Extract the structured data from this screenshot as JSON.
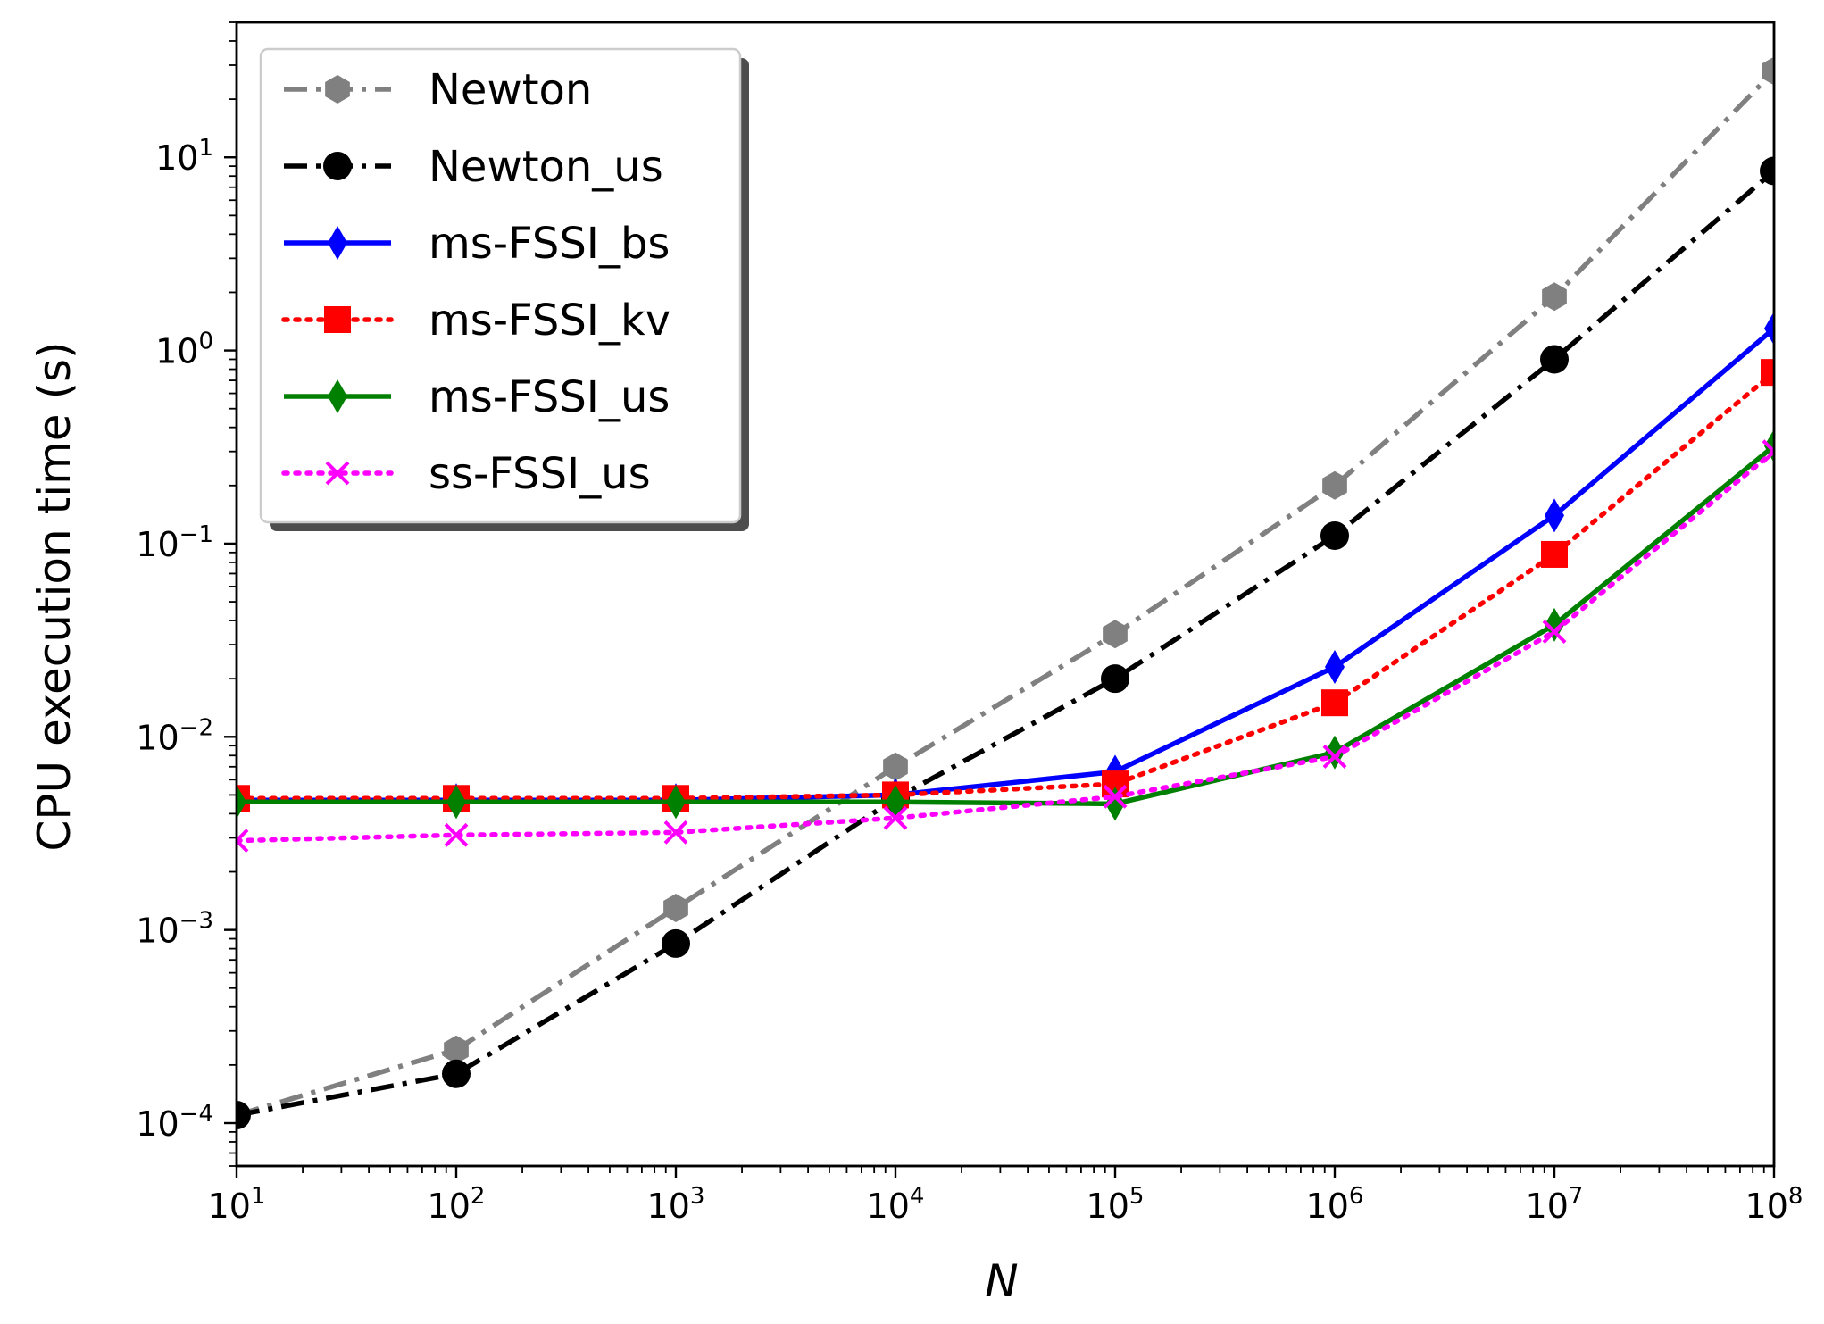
{
  "chart_data": {
    "type": "line",
    "title": "",
    "xlabel": "N",
    "ylabel": "CPU execution time (s)",
    "xscale": "log",
    "yscale": "log",
    "xlim": [
      10,
      100000000
    ],
    "ylim": [
      6e-05,
      50
    ],
    "x_ticks": [
      {
        "base": "10",
        "exp": "1"
      },
      {
        "base": "10",
        "exp": "2"
      },
      {
        "base": "10",
        "exp": "3"
      },
      {
        "base": "10",
        "exp": "4"
      },
      {
        "base": "10",
        "exp": "5"
      },
      {
        "base": "10",
        "exp": "6"
      },
      {
        "base": "10",
        "exp": "7"
      },
      {
        "base": "10",
        "exp": "8"
      }
    ],
    "y_ticks": [
      {
        "base": "10",
        "exp": "−4"
      },
      {
        "base": "10",
        "exp": "−3"
      },
      {
        "base": "10",
        "exp": "−2"
      },
      {
        "base": "10",
        "exp": "−1"
      },
      {
        "base": "10",
        "exp": "0"
      },
      {
        "base": "10",
        "exp": "1"
      }
    ],
    "legend_position": "top-left",
    "x": [
      10,
      100,
      1000,
      10000,
      100000,
      1000000,
      10000000,
      100000000
    ],
    "series": [
      {
        "name": "Newton",
        "color": "#808080",
        "linestyle": "dashdot",
        "marker": "hexagon",
        "values": [
          0.00011,
          0.00024,
          0.0013,
          0.007,
          0.034,
          0.2,
          1.9,
          28
        ]
      },
      {
        "name": "Newton_us",
        "color": "#000000",
        "linestyle": "dashdot",
        "marker": "circle",
        "values": [
          0.00011,
          0.00018,
          0.00085,
          0.0048,
          0.02,
          0.11,
          0.9,
          8.5
        ]
      },
      {
        "name": "ms-FSSI_bs",
        "color": "#0000ff",
        "linestyle": "solid",
        "marker": "thin_diamond",
        "values": [
          0.0047,
          0.0047,
          0.0047,
          0.005,
          0.0066,
          0.023,
          0.14,
          1.3
        ]
      },
      {
        "name": "ms-FSSI_kv",
        "color": "#ff0000",
        "linestyle": "dotted",
        "marker": "square",
        "values": [
          0.0048,
          0.0048,
          0.0048,
          0.005,
          0.0057,
          0.015,
          0.088,
          0.77
        ]
      },
      {
        "name": "ms-FSSI_us",
        "color": "#008000",
        "linestyle": "solid",
        "marker": "thin_diamond",
        "values": [
          0.0046,
          0.0046,
          0.0046,
          0.0046,
          0.0045,
          0.0083,
          0.038,
          0.32
        ]
      },
      {
        "name": "ss-FSSI_us",
        "color": "#ff00ff",
        "linestyle": "dotted",
        "marker": "x",
        "values": [
          0.0029,
          0.0031,
          0.0032,
          0.0038,
          0.0049,
          0.0079,
          0.035,
          0.3
        ]
      }
    ]
  }
}
